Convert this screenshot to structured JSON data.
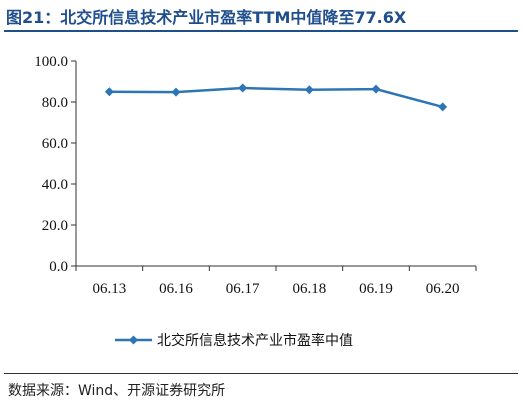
{
  "title": "图21：北交所信息技术产业市盈率TTM中值降至77.6X",
  "source": "数据来源：Wind、开源证券研究所",
  "colors": {
    "title": "#1f4e8c",
    "series": "#2e75b6"
  },
  "chart_data": {
    "type": "line",
    "categories": [
      "06.13",
      "06.16",
      "06.17",
      "06.18",
      "06.19",
      "06.20"
    ],
    "series": [
      {
        "name": "北交所信息技术产业市盈率中值",
        "values": [
          85.0,
          84.8,
          86.8,
          86.0,
          86.3,
          77.6
        ]
      }
    ],
    "y_ticks": [
      "0.0",
      "20.0",
      "40.0",
      "60.0",
      "80.0",
      "100.0"
    ],
    "ylim": [
      0,
      100
    ],
    "grid": false,
    "legend": "bottom",
    "marker": "diamond"
  }
}
